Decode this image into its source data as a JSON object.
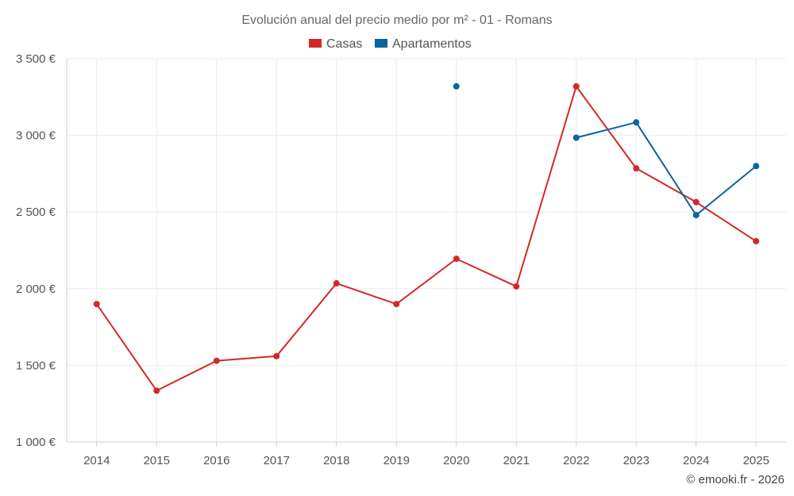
{
  "chart_data": {
    "type": "line",
    "title": "Evolución anual del precio medio por m² - 01 - Romans",
    "categories": [
      "2014",
      "2015",
      "2016",
      "2017",
      "2018",
      "2019",
      "2020",
      "2021",
      "2022",
      "2023",
      "2024",
      "2025"
    ],
    "series": [
      {
        "name": "Casas",
        "color": "#d62728",
        "values": [
          1900,
          1335,
          1530,
          1560,
          2035,
          1900,
          2195,
          2015,
          3320,
          2785,
          2565,
          2310
        ]
      },
      {
        "name": "Apartamentos",
        "color": "#0a64a0",
        "values": [
          null,
          null,
          null,
          null,
          null,
          null,
          3320,
          null,
          2985,
          3085,
          2480,
          2800
        ]
      }
    ],
    "ylim": [
      1000,
      3500
    ],
    "yticks": [
      1000,
      1500,
      2000,
      2500,
      3000,
      3500
    ],
    "ytick_labels": [
      "1 000 €",
      "1 500 €",
      "2 000 €",
      "2 500 €",
      "3 000 €",
      "3 500 €"
    ],
    "xlabel": "",
    "ylabel": "",
    "grid": true,
    "legend": "top-center"
  },
  "credit": "© emooki.fr - 2026"
}
